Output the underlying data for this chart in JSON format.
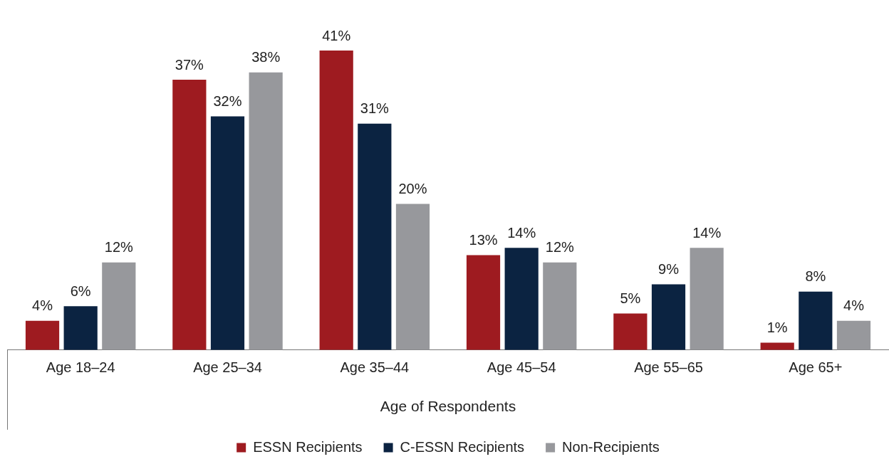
{
  "chart_data": {
    "type": "bar",
    "xlabel": "Age of Respondents",
    "categories": [
      "Age 18–24",
      "Age 25–34",
      "Age 35–44",
      "Age 45–54",
      "Age 55–65",
      "Age 65+"
    ],
    "series": [
      {
        "name": "ESSN Recipients",
        "color": "#9e1b20",
        "values": [
          4,
          37,
          41,
          13,
          5,
          1
        ],
        "value_labels": [
          "4%",
          "37%",
          "41%",
          "13%",
          "5%",
          "1%"
        ]
      },
      {
        "name": "C-ESSN Recipients",
        "color": "#0b2341",
        "values": [
          6,
          32,
          31,
          14,
          9,
          8
        ],
        "value_labels": [
          "6%",
          "32%",
          "31%",
          "14%",
          "9%",
          "8%"
        ]
      },
      {
        "name": "Non-Recipients",
        "color": "#97989c",
        "values": [
          12,
          38,
          20,
          12,
          14,
          4
        ],
        "value_labels": [
          "12%",
          "38%",
          "20%",
          "12%",
          "14%",
          "4%"
        ]
      }
    ],
    "grid": false,
    "legend": "bottom"
  }
}
